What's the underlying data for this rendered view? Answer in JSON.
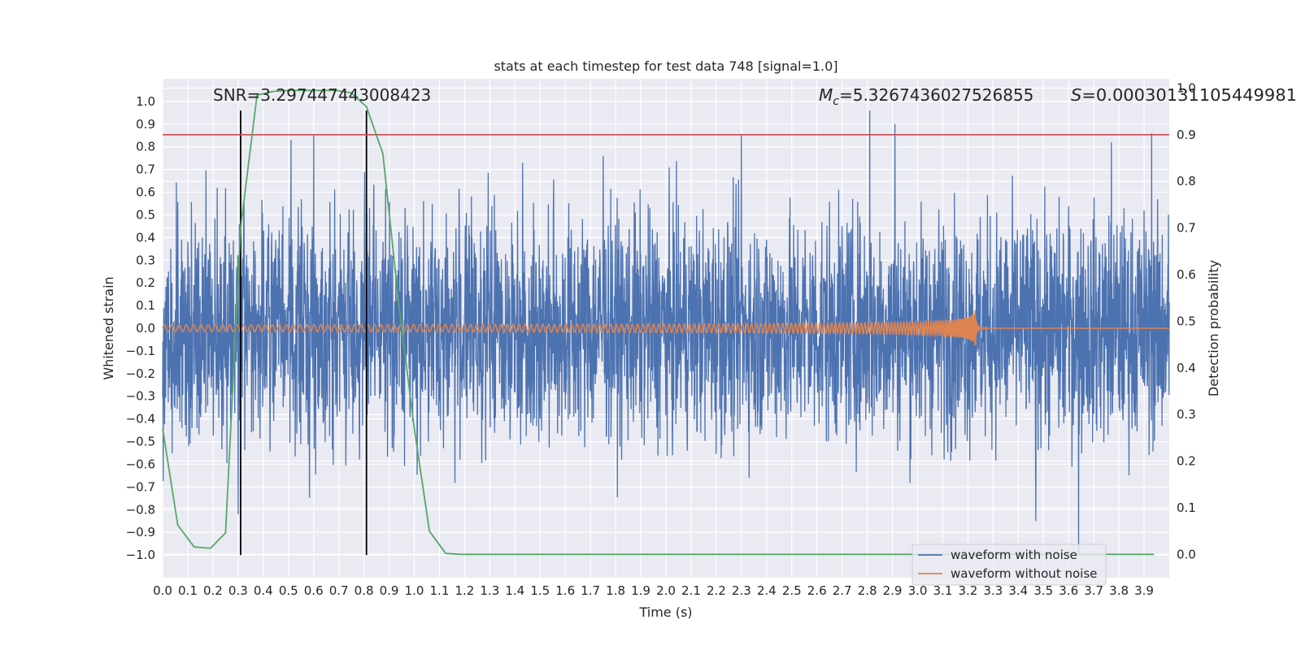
{
  "chart_data": {
    "type": "line",
    "title": "stats at each timestep for test data 748 [signal=1.0]",
    "xlabel": "Time (s)",
    "ylabel_left": "Whitened strain",
    "ylabel_right": "Detection probability",
    "xlim": [
      0.0,
      4.0
    ],
    "ylim_left": [
      -1.1,
      1.1
    ],
    "ylim_right": [
      -0.05,
      1.02
    ],
    "x_ticks": [
      0.0,
      0.1,
      0.2,
      0.3,
      0.4,
      0.5,
      0.6,
      0.7,
      0.8,
      0.9,
      1.0,
      1.1,
      1.2,
      1.3,
      1.4,
      1.5,
      1.6,
      1.7,
      1.8,
      1.9,
      2.0,
      2.1,
      2.2,
      2.3,
      2.4,
      2.5,
      2.6,
      2.7,
      2.8,
      2.9,
      3.0,
      3.1,
      3.2,
      3.3,
      3.4,
      3.5,
      3.6,
      3.7,
      3.8,
      3.9
    ],
    "x_tick_labels": [
      "0.0",
      "0.1",
      "0.2",
      "0.3",
      "0.4",
      "0.5",
      "0.6",
      "0.7",
      "0.8",
      "0.9",
      "1.0",
      "1.1",
      "1.2",
      "1.3",
      "1.4",
      "1.5",
      "1.6",
      "1.7",
      "1.8",
      "1.9",
      "2.0",
      "2.1",
      "2.2",
      "2.3",
      "2.4",
      "2.5",
      "2.6",
      "2.7",
      "2.8",
      "2.9",
      "3.0",
      "3.1",
      "3.2",
      "3.3",
      "3.4",
      "3.5",
      "3.6",
      "3.7",
      "3.8",
      "3.9"
    ],
    "y_left_ticks": [
      1.0,
      0.9,
      0.8,
      0.7,
      0.6,
      0.5,
      0.4,
      0.3,
      0.2,
      0.1,
      0.0,
      -0.1,
      -0.2,
      -0.3,
      -0.4,
      -0.5,
      -0.6,
      -0.7,
      -0.8,
      -0.9,
      -1.0
    ],
    "y_left_tick_labels": [
      "1.0",
      "0.9",
      "0.8",
      "0.7",
      "0.6",
      "0.5",
      "0.4",
      "0.3",
      "0.2",
      "0.1",
      "0.0",
      "−0.1",
      "−0.2",
      "−0.3",
      "−0.4",
      "−0.5",
      "−0.6",
      "−0.7",
      "−0.8",
      "−0.9",
      "−1.0"
    ],
    "y_right_ticks": [
      1.0,
      0.9,
      0.8,
      0.7,
      0.6,
      0.5,
      0.4,
      0.3,
      0.2,
      0.1,
      0.0
    ],
    "y_right_tick_labels": [
      "1.0",
      "0.9",
      "0.8",
      "0.7",
      "0.6",
      "0.5",
      "0.4",
      "0.3",
      "0.2",
      "0.1",
      "0.0"
    ],
    "grid": true,
    "legend_position": "lower-right",
    "annotations": {
      "snr": "SNR=3.297447443008423",
      "mc_symbol": "M",
      "mc_sub": "c",
      "mc_value": "=5.3267436027526855",
      "s_symbol": "S",
      "s_value": "=0.00030131105449981"
    },
    "series": [
      {
        "name": "waveform with noise",
        "color": "#4c72b0",
        "axis": "left",
        "kind": "noise",
        "x_range": [
          0.0,
          4.0
        ],
        "amplitude_typical": 0.45,
        "peaks": [
          {
            "x": 0.51,
            "y": 0.83
          },
          {
            "x": 0.6,
            "y": 0.85
          },
          {
            "x": 1.43,
            "y": 0.73
          },
          {
            "x": 1.75,
            "y": 0.76
          },
          {
            "x": 2.3,
            "y": 0.85
          },
          {
            "x": 2.81,
            "y": 0.96
          },
          {
            "x": 2.91,
            "y": 0.9
          },
          {
            "x": 3.93,
            "y": 0.86
          },
          {
            "x": 3.77,
            "y": 0.82
          },
          {
            "x": 3.64,
            "y": -1.0
          },
          {
            "x": 0.3,
            "y": -0.82
          },
          {
            "x": 3.47,
            "y": -0.85
          }
        ]
      },
      {
        "name": "waveform without noise",
        "color": "#dd8452",
        "axis": "left",
        "kind": "chirp",
        "x_range": [
          0.0,
          4.0
        ],
        "merger_time": 3.23,
        "start_amplitude": 0.015,
        "merger_amplitude": 0.1
      },
      {
        "name": "Detection probability",
        "color": "#55a868",
        "axis": "right",
        "kind": "line",
        "x": [
          0.0,
          0.06,
          0.125,
          0.19,
          0.25,
          0.31,
          0.375,
          0.44,
          0.5,
          0.56,
          0.625,
          0.69,
          0.75,
          0.81,
          0.875,
          0.94,
          1.0,
          1.06,
          1.125,
          1.19,
          3.94
        ],
        "y": [
          0.27,
          0.063,
          0.016,
          0.013,
          0.046,
          0.7,
          0.985,
          0.993,
          0.995,
          0.995,
          0.995,
          0.995,
          0.99,
          0.96,
          0.86,
          0.53,
          0.27,
          0.05,
          0.002,
          0.0,
          0.0
        ]
      }
    ],
    "threshold": {
      "axis": "right",
      "y": 0.9,
      "color": "#c44e52"
    },
    "vertical_markers": [
      {
        "x": 0.31,
        "y_left": [
          -1.0,
          0.96
        ],
        "color": "#000000"
      },
      {
        "x": 0.81,
        "y_left": [
          -1.0,
          0.96
        ],
        "color": "#000000"
      }
    ]
  },
  "style": {
    "plot_background": "#eaeaf2",
    "grid_color": "#ffffff",
    "text_color": "#262626"
  }
}
